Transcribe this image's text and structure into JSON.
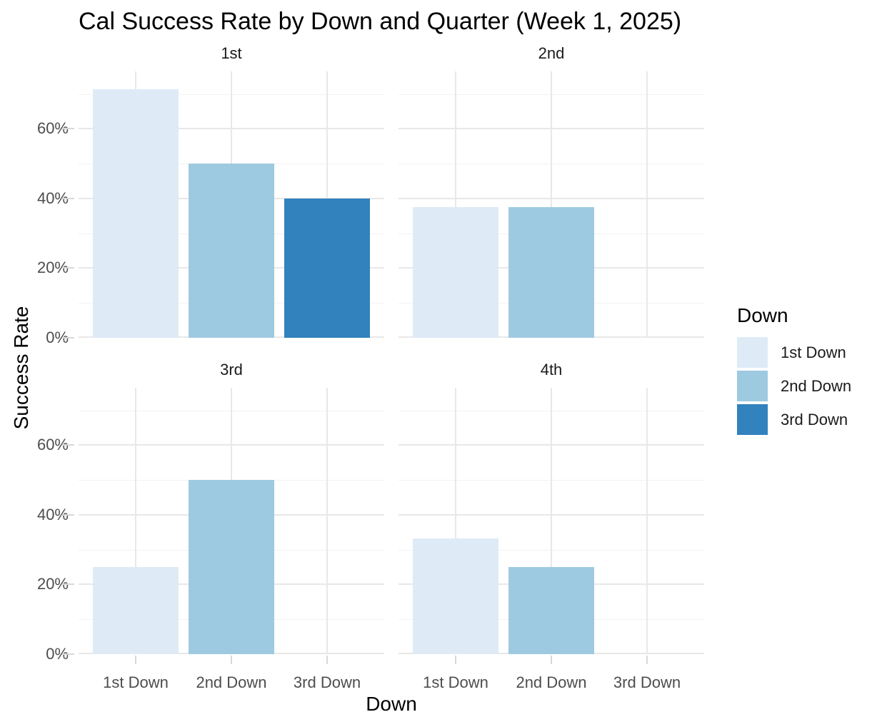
{
  "title": "Cal Success Rate by Down and Quarter (Week 1, 2025)",
  "axes": {
    "x_title": "Down",
    "y_title": "Success Rate"
  },
  "legend": {
    "title": "Down",
    "items": [
      {
        "label": "1st Down",
        "color": "#DEEBF7"
      },
      {
        "label": "2nd Down",
        "color": "#9ECAE1"
      },
      {
        "label": "3rd Down",
        "color": "#3182BD"
      }
    ]
  },
  "chart_data": {
    "type": "bar",
    "title": "Cal Success Rate by Down and Quarter (Week 1, 2025)",
    "xlabel": "Down",
    "ylabel": "Success Rate",
    "facet_variable": "Quarter",
    "categories": [
      "1st Down",
      "2nd Down",
      "3rd Down"
    ],
    "category_colors": [
      "#DEEBF7",
      "#9ECAE1",
      "#3182BD"
    ],
    "facets": [
      {
        "label": "1st",
        "values": [
          71.4,
          50,
          40
        ]
      },
      {
        "label": "2nd",
        "values": [
          37.5,
          37.5,
          null
        ]
      },
      {
        "label": "3rd",
        "values": [
          25,
          50,
          null
        ]
      },
      {
        "label": "4th",
        "values": [
          33.3,
          25,
          null
        ]
      }
    ],
    "unit": "%",
    "ylim": [
      0,
      76.5
    ],
    "y_major_ticks": [
      0,
      20,
      40,
      60
    ],
    "y_tick_labels": [
      "0%",
      "20%",
      "40%",
      "60%"
    ],
    "y_minor_gridlines": [
      10,
      30,
      50,
      70
    ],
    "grid": "major+minor",
    "legend_position": "right"
  },
  "colors": {
    "grid_major": "#E8E8E8",
    "grid_minor": "#F2F2F2",
    "tick_mark": "#D8D8D8",
    "tick_label": "#4D4D4D",
    "strip_label": "#1A1A1A",
    "text": "#000000",
    "background": "#FFFFFF"
  }
}
